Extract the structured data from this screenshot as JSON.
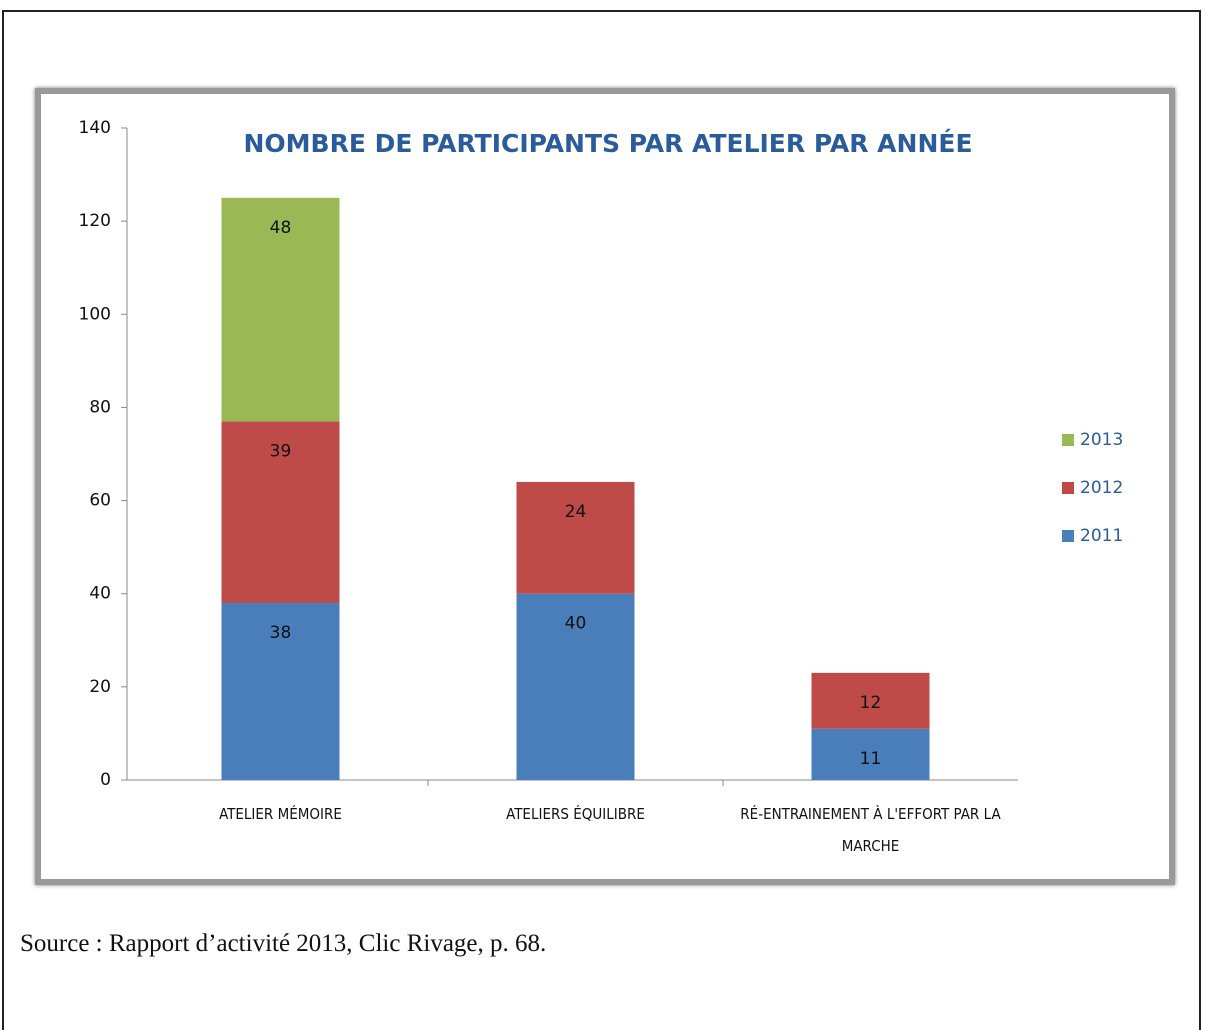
{
  "chart_data": {
    "type": "stacked_bar",
    "title": "NOMBRE DE PARTICIPANTS PAR ATELIER PAR ANNÉE",
    "categories": [
      "ATELIER MÉMOIRE",
      "ATELIERS ÉQUILIBRE",
      "RÉ-ENTRAINEMENT À L'EFFORT PAR LA MARCHE"
    ],
    "series": [
      {
        "name": "2011",
        "color": "#4a7ebb",
        "values": [
          38,
          40,
          11
        ]
      },
      {
        "name": "2012",
        "color": "#be4b48",
        "values": [
          39,
          24,
          12
        ]
      },
      {
        "name": "2013",
        "color": "#98b954",
        "values": [
          48,
          null,
          null
        ]
      }
    ],
    "ylim": [
      0,
      140
    ],
    "yticks": [
      0,
      20,
      40,
      60,
      80,
      100,
      120,
      140
    ],
    "legend": "right"
  },
  "caption": "Source : Rapport d’activité 2013, Clic Rivage, p. 68."
}
